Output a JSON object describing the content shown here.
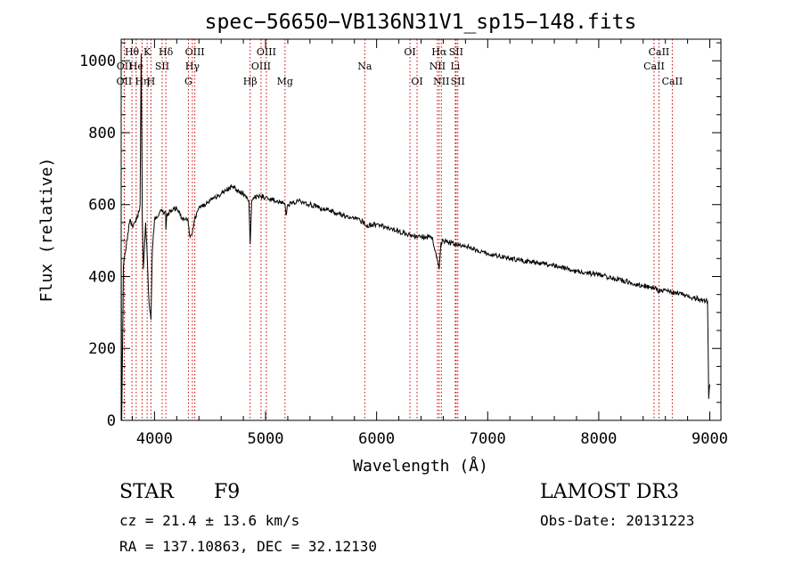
{
  "chart_data": {
    "type": "line",
    "title": "spec−56650−VB136N31V1_sp15−148.fits",
    "xlabel": "Wavelength (Å)",
    "ylabel": "Flux (relative)",
    "xlim": [
      3700,
      9100
    ],
    "ylim": [
      0,
      1060
    ],
    "x_ticks": [
      4000,
      5000,
      6000,
      7000,
      8000,
      9000
    ],
    "y_ticks": [
      0,
      200,
      400,
      600,
      800,
      1000
    ],
    "line_color": "#000000",
    "marker_color": "#cc0000",
    "series": [
      {
        "name": "Flux",
        "x": [
          3700,
          3705,
          3720,
          3740,
          3760,
          3780,
          3800,
          3820,
          3840,
          3860,
          3870,
          3880,
          3890,
          3900,
          3920,
          3935,
          3950,
          3968,
          3980,
          4000,
          4050,
          4100,
          4102,
          4110,
          4150,
          4200,
          4250,
          4300,
          4320,
          4340,
          4360,
          4400,
          4450,
          4500,
          4550,
          4600,
          4650,
          4700,
          4750,
          4800,
          4850,
          4861,
          4875,
          4900,
          4950,
          5000,
          5100,
          5175,
          5185,
          5200,
          5300,
          5400,
          5500,
          5600,
          5700,
          5800,
          5890,
          5900,
          6000,
          6100,
          6200,
          6300,
          6400,
          6500,
          6563,
          6580,
          6600,
          6700,
          6800,
          7000,
          7200,
          7400,
          7600,
          7800,
          8000,
          8200,
          8400,
          8498,
          8542,
          8600,
          8662,
          8700,
          8800,
          8900,
          8980,
          8990,
          9000
        ],
        "y": [
          460,
          0,
          430,
          470,
          520,
          560,
          540,
          550,
          560,
          580,
          600,
          1020,
          560,
          420,
          550,
          450,
          330,
          280,
          470,
          560,
          580,
          580,
          530,
          570,
          585,
          590,
          560,
          560,
          510,
          520,
          560,
          590,
          600,
          610,
          620,
          630,
          640,
          650,
          640,
          630,
          610,
          490,
          610,
          620,
          625,
          620,
          610,
          600,
          570,
          600,
          610,
          600,
          590,
          580,
          570,
          560,
          550,
          540,
          545,
          535,
          525,
          515,
          510,
          510,
          420,
          495,
          500,
          490,
          485,
          465,
          450,
          440,
          430,
          415,
          405,
          390,
          375,
          368,
          360,
          365,
          355,
          355,
          345,
          338,
          330,
          60,
          100
        ]
      }
    ],
    "line_markers": [
      {
        "label": "Hθ",
        "x": 3797,
        "row": 1
      },
      {
        "label": "OII",
        "x": 3727,
        "row": 3
      },
      {
        "label": "OII",
        "x": 3729,
        "row": 2
      },
      {
        "label": "He",
        "x": 3835,
        "row": 2
      },
      {
        "label": "Hη",
        "x": 3889,
        "row": 3
      },
      {
        "label": "K",
        "x": 3934,
        "row": 1
      },
      {
        "label": "H",
        "x": 3968,
        "row": 3
      },
      {
        "label": "SII",
        "x": 4069,
        "row": 2
      },
      {
        "label": "Hδ",
        "x": 4102,
        "row": 1
      },
      {
        "label": "G",
        "x": 4305,
        "row": 3
      },
      {
        "label": "OIII",
        "x": 4363,
        "row": 1
      },
      {
        "label": "Hγ",
        "x": 4341,
        "row": 2
      },
      {
        "label": "Hβ",
        "x": 4861,
        "row": 3
      },
      {
        "label": "OIII",
        "x": 5007,
        "row": 1
      },
      {
        "label": "OIII",
        "x": 4959,
        "row": 2
      },
      {
        "label": "Mg",
        "x": 5175,
        "row": 3
      },
      {
        "label": "Na",
        "x": 5893,
        "row": 2
      },
      {
        "label": "OI",
        "x": 6300,
        "row": 1
      },
      {
        "label": "OI",
        "x": 6364,
        "row": 3
      },
      {
        "label": "Hα",
        "x": 6563,
        "row": 1
      },
      {
        "label": "NII",
        "x": 6548,
        "row": 2
      },
      {
        "label": "NII",
        "x": 6583,
        "row": 3
      },
      {
        "label": "SII",
        "x": 6716,
        "row": 1
      },
      {
        "label": "Li",
        "x": 6708,
        "row": 2
      },
      {
        "label": "SII",
        "x": 6731,
        "row": 3
      },
      {
        "label": "CaII",
        "x": 8542,
        "row": 1
      },
      {
        "label": "CaII",
        "x": 8498,
        "row": 2
      },
      {
        "label": "CaII",
        "x": 8662,
        "row": 3
      }
    ]
  },
  "info": {
    "object_class": "STAR",
    "subclass": "F9",
    "survey": "LAMOST DR3",
    "redshift_text": "cz = 21.4 ± 13.6 km/s",
    "obs_date_text": "Obs-Date: 20131223",
    "coords_text": "RA = 137.10863, DEC =  32.12130"
  }
}
